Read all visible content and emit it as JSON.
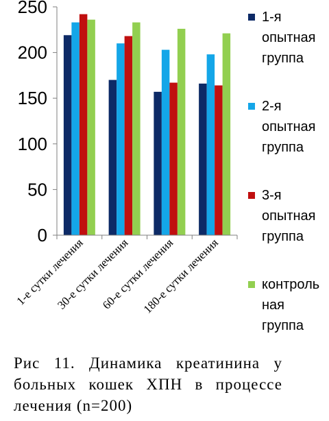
{
  "chart_data": {
    "type": "bar",
    "categories": [
      "1-е сутки лечения",
      "30-е сутки лечения",
      "60-е сутки лечения",
      "180-е сутки лечения"
    ],
    "series": [
      {
        "name": "1-я опытная группа",
        "color": "#0d2a66",
        "values": [
          219,
          170,
          157,
          166
        ]
      },
      {
        "name": "2-я опытная группа",
        "color": "#14a6e8",
        "values": [
          233,
          210,
          203,
          198
        ]
      },
      {
        "name": "3-я опытная группа",
        "color": "#c00f0f",
        "values": [
          242,
          218,
          167,
          164
        ]
      },
      {
        "name": "контрольная группа",
        "color": "#92cf50",
        "values": [
          236,
          233,
          226,
          221
        ]
      }
    ],
    "y_ticks": [
      "0",
      "50",
      "100",
      "150",
      "200",
      "250"
    ],
    "ylim": [
      0,
      250
    ],
    "grid": false,
    "legend_position": "right"
  },
  "legend_labels": [
    "1-я\nопытная\nгруппа",
    "2-я\nопытная\nгруппа",
    "3-я\nопытная\nгруппа",
    "контроль\nная\nгруппа"
  ],
  "caption": "Рис 11. Динамика креатинина у больных кошек ХПН в процессе лечения (n=200)"
}
